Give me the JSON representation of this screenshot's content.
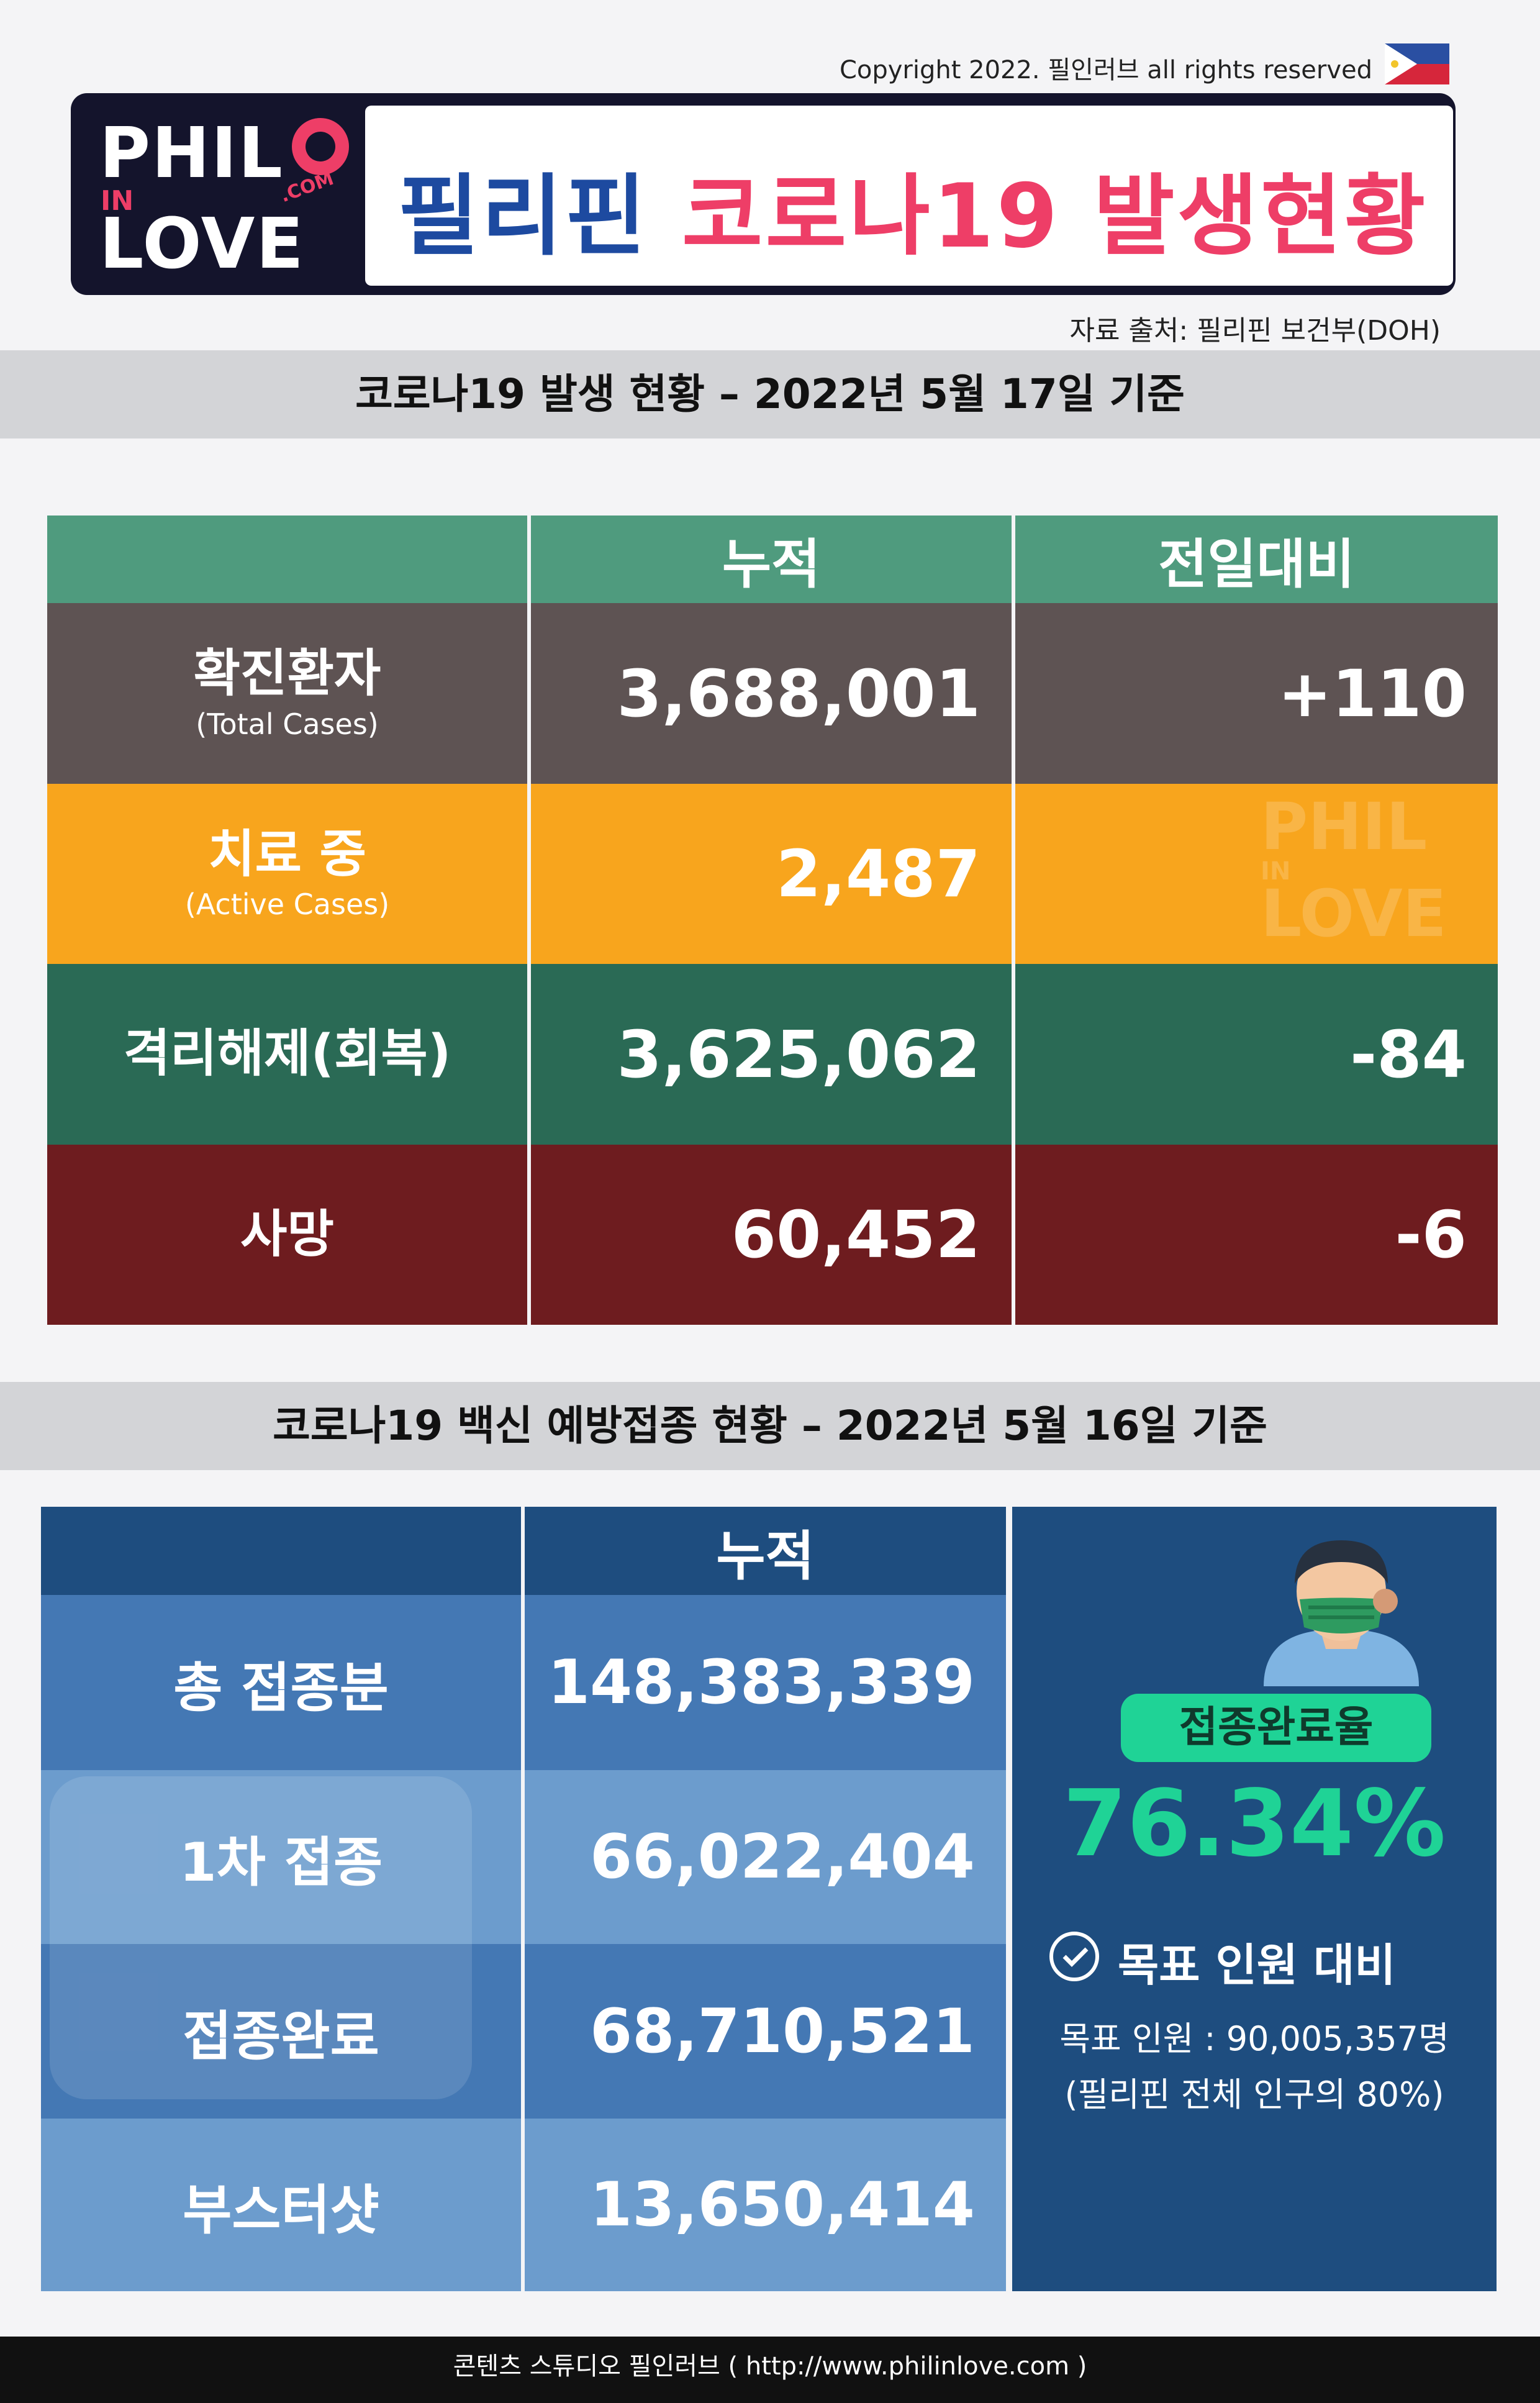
{
  "header": {
    "copyright": "Copyright 2022. 필인러브 all rights reserved",
    "logo": {
      "line1": "PHIL",
      "line2": "IN",
      "line3": "LOVE",
      "dotcom": ".COM"
    },
    "title_ph": "필리핀",
    "title_main": "코로나19 발생현황",
    "source": "자료 출처: 필리핀 보건부(DOH)"
  },
  "colors": {
    "brand_red": "#ee3e67",
    "brand_blue": "#1d4aa0",
    "header_green": "#4f9b7e",
    "row_total": "#5e5353",
    "row_active": "#f8a51d",
    "row_recovered": "#2a6a55",
    "row_death": "#6e1c1f",
    "vaccine_dark": "#1e4d7f",
    "vaccine_mid": "#4478b4",
    "vaccine_light": "#6c9ccd",
    "accent_green": "#1fd396"
  },
  "covid": {
    "section_title": "코로나19 발생 현황 – 2022년 5월 17일 기준",
    "col_cumulative": "누적",
    "col_daily": "전일대비",
    "rows": [
      {
        "label": "확진환자",
        "sub": "(Total Cases)",
        "cumulative": "3,688,001",
        "daily": "+110"
      },
      {
        "label": "치료 중",
        "sub": "(Active Cases)",
        "cumulative": "2,487",
        "daily": ""
      },
      {
        "label": "격리해제(회복)",
        "sub": "",
        "cumulative": "3,625,062",
        "daily": "-84"
      },
      {
        "label": "사망",
        "sub": "",
        "cumulative": "60,452",
        "daily": "-6"
      }
    ]
  },
  "vaccine": {
    "section_title": "코로나19 백신 예방접종 현황 – 2022년 5월 16일 기준",
    "col_cumulative": "누적",
    "rows": [
      {
        "label": "총 접종분",
        "value": "148,383,339"
      },
      {
        "label": "1차 접종",
        "value": "66,022,404"
      },
      {
        "label": "접종완료",
        "value": "68,710,521"
      },
      {
        "label": "부스터샷",
        "value": "13,650,414"
      }
    ],
    "panel": {
      "badge": "접종완료율",
      "rate": "76.34%",
      "goal_title": "목표 인원 대비",
      "goal_line1": "목표 인원 : 90,005,357명",
      "goal_line2": "(필리핀 전체 인구의 80%)"
    }
  },
  "footer": {
    "text": "콘텐츠 스튜디오 필인러브 ( http://www.philinlove.com )"
  }
}
